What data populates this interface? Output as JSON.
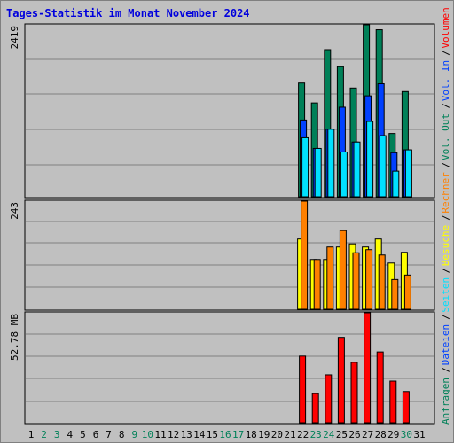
{
  "title": "Tages-Statistik im Monat November 2024",
  "chart_data": {
    "type": "bar",
    "days": [
      "1",
      "2",
      "3",
      "4",
      "5",
      "6",
      "7",
      "8",
      "9",
      "10",
      "11",
      "12",
      "13",
      "14",
      "15",
      "16",
      "17",
      "18",
      "19",
      "20",
      "21",
      "22",
      "23",
      "24",
      "25",
      "26",
      "27",
      "28",
      "29",
      "30",
      "31"
    ],
    "weekend_days": [
      "2",
      "3",
      "9",
      "10",
      "16",
      "17",
      "23",
      "24",
      "30"
    ],
    "panels": [
      {
        "name": "requests-pages-files",
        "max_label": "2419",
        "ymax": 2419,
        "series": [
          {
            "name": "Anfragen",
            "color": "#008058",
            "values": [
              0,
              0,
              0,
              0,
              0,
              0,
              0,
              0,
              0,
              0,
              0,
              0,
              0,
              0,
              0,
              0,
              0,
              0,
              0,
              0,
              0,
              1600,
              1320,
              2070,
              1830,
              1530,
              2419,
              2350,
              890,
              1480,
              0
            ]
          },
          {
            "name": "Dateien",
            "color": "#0040ff",
            "values": [
              0,
              0,
              0,
              0,
              0,
              0,
              0,
              0,
              0,
              0,
              0,
              0,
              0,
              0,
              0,
              0,
              0,
              0,
              0,
              0,
              0,
              1080,
              680,
              950,
              1260,
              770,
              1420,
              1590,
              620,
              660,
              0
            ]
          },
          {
            "name": "Seiten",
            "color": "#00e0ff",
            "values": [
              0,
              0,
              0,
              0,
              0,
              0,
              0,
              0,
              0,
              0,
              0,
              0,
              0,
              0,
              0,
              0,
              0,
              0,
              0,
              0,
              0,
              830,
              680,
              950,
              630,
              770,
              1060,
              860,
              360,
              660,
              0
            ]
          }
        ]
      },
      {
        "name": "visits-hosts",
        "max_label": "243",
        "ymax": 243,
        "series": [
          {
            "name": "Besuche",
            "color": "#ffff00",
            "values": [
              0,
              0,
              0,
              0,
              0,
              0,
              0,
              0,
              0,
              0,
              0,
              0,
              0,
              0,
              0,
              0,
              0,
              0,
              0,
              0,
              0,
              158,
              112,
              112,
              140,
              147,
              140,
              158,
              104,
              128,
              0
            ]
          },
          {
            "name": "Rechner",
            "color": "#ff8000",
            "values": [
              0,
              0,
              0,
              0,
              0,
              0,
              0,
              0,
              0,
              0,
              0,
              0,
              0,
              0,
              0,
              0,
              0,
              0,
              0,
              0,
              0,
              243,
              112,
              140,
              177,
              127,
              134,
              122,
              67,
              77,
              0
            ]
          }
        ]
      },
      {
        "name": "volume",
        "max_label": "52.78 MB",
        "ymax": 52.78,
        "series": [
          {
            "name": "Volumen",
            "color": "#ff0000",
            "values": [
              0,
              0,
              0,
              0,
              0,
              0,
              0,
              0,
              0,
              0,
              0,
              0,
              0,
              0,
              0,
              0,
              0,
              0,
              0,
              0,
              0,
              32,
              14,
              23,
              41,
              29,
              52.78,
              34,
              20,
              15,
              0
            ]
          }
        ]
      }
    ],
    "side_labels": [
      {
        "text": "Anfragen",
        "color": "#008058"
      },
      {
        "text": "/",
        "color": "#000000"
      },
      {
        "text": "Dateien",
        "color": "#0040ff"
      },
      {
        "text": "/",
        "color": "#000000"
      },
      {
        "text": "Seiten",
        "color": "#00e0ff"
      },
      {
        "text": "/",
        "color": "#000000"
      },
      {
        "text": "Besuche",
        "color": "#ffff00"
      },
      {
        "text": "/",
        "color": "#000000"
      },
      {
        "text": "Rechner",
        "color": "#ff8000"
      },
      {
        "text": "/",
        "color": "#000000"
      },
      {
        "text": "Vol. Out",
        "color": "#008058"
      },
      {
        "text": "/",
        "color": "#000000"
      },
      {
        "text": "Vol. In",
        "color": "#0040ff"
      },
      {
        "text": "/",
        "color": "#000000"
      },
      {
        "text": "Volumen",
        "color": "#ff0000"
      }
    ]
  }
}
